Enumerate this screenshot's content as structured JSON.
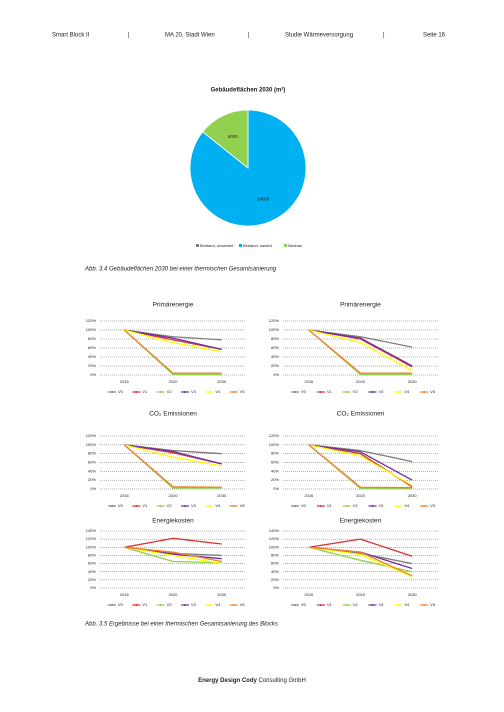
{
  "header": {
    "items": [
      "Smart Block II",
      "|",
      "MA 20, Stadt Wien",
      "|",
      "Studie Wärmeversorgung",
      "|",
      "Seite 16"
    ]
  },
  "chart_data": [
    {
      "type": "pie",
      "title": "Gebäudeflächen 2030 (m²)",
      "categories": [
        "Bestand, unsaniert",
        "Bestand, saniert",
        "Neubau"
      ],
      "values": [
        0,
        24000,
        4000
      ],
      "colors": [
        "#7f7f7f",
        "#00b0f0",
        "#92d050"
      ],
      "legend": "bottom"
    },
    {
      "type": "line",
      "title": "Primärenergie",
      "categories": [
        "2016",
        "2020",
        "2030"
      ],
      "ylim": [
        0,
        120
      ],
      "yticks": [
        {
          "value": 0,
          "label": "0%"
        },
        {
          "value": 20,
          "label": "20%"
        },
        {
          "value": 40,
          "label": "40%"
        },
        {
          "value": 60,
          "label": "60%"
        },
        {
          "value": 80,
          "label": "80%"
        },
        {
          "value": 100,
          "label": "100%"
        },
        {
          "value": 120,
          "label": "120%"
        }
      ],
      "grid": true,
      "series": [
        {
          "name": "V0",
          "color": "#7f7f7f",
          "values": [
            100,
            85,
            78
          ]
        },
        {
          "name": "V1",
          "color": "#e03030",
          "values": [
            100,
            78,
            57
          ]
        },
        {
          "name": "V2",
          "color": "#92d050",
          "values": [
            100,
            1,
            1
          ]
        },
        {
          "name": "V3",
          "color": "#7030a0",
          "values": [
            100,
            82,
            57
          ]
        },
        {
          "name": "V4",
          "color": "#ffff00",
          "values": [
            100,
            72,
            52
          ]
        },
        {
          "name": "V5",
          "color": "#f08030",
          "values": [
            100,
            4,
            4
          ]
        }
      ]
    },
    {
      "type": "line",
      "title": "Primärenergie",
      "categories": [
        "2016",
        "2020",
        "2030"
      ],
      "ylim": [
        0,
        120
      ],
      "yticks": [
        {
          "value": 0,
          "label": "0%"
        },
        {
          "value": 20,
          "label": "20%"
        },
        {
          "value": 40,
          "label": "40%"
        },
        {
          "value": 60,
          "label": "60%"
        },
        {
          "value": 80,
          "label": "80%"
        },
        {
          "value": 100,
          "label": "100%"
        },
        {
          "value": 120,
          "label": "120%"
        }
      ],
      "grid": true,
      "series": [
        {
          "name": "V0",
          "color": "#7f7f7f",
          "values": [
            100,
            85,
            62
          ]
        },
        {
          "name": "V1",
          "color": "#e03030",
          "values": [
            100,
            80,
            18
          ]
        },
        {
          "name": "V2",
          "color": "#92d050",
          "values": [
            100,
            1,
            1
          ]
        },
        {
          "name": "V3",
          "color": "#7030a0",
          "values": [
            100,
            82,
            20
          ]
        },
        {
          "name": "V4",
          "color": "#ffff00",
          "values": [
            100,
            72,
            10
          ]
        },
        {
          "name": "V5",
          "color": "#f08030",
          "values": [
            100,
            4,
            4
          ]
        }
      ]
    },
    {
      "type": "line",
      "title": "CO₂ Emissionen",
      "categories": [
        "2016",
        "2020",
        "2030"
      ],
      "ylim": [
        0,
        120
      ],
      "yticks": [
        {
          "value": 0,
          "label": "0%"
        },
        {
          "value": 20,
          "label": "20%"
        },
        {
          "value": 40,
          "label": "40%"
        },
        {
          "value": 60,
          "label": "60%"
        },
        {
          "value": 80,
          "label": "80%"
        },
        {
          "value": 100,
          "label": "100%"
        },
        {
          "value": 120,
          "label": "120%"
        }
      ],
      "grid": true,
      "series": [
        {
          "name": "V0",
          "color": "#7f7f7f",
          "values": [
            100,
            87,
            80
          ]
        },
        {
          "name": "V1",
          "color": "#e03030",
          "values": [
            100,
            82,
            57
          ]
        },
        {
          "name": "V2",
          "color": "#92d050",
          "values": [
            100,
            2,
            2
          ]
        },
        {
          "name": "V3",
          "color": "#7030a0",
          "values": [
            100,
            85,
            57
          ]
        },
        {
          "name": "V4",
          "color": "#ffff00",
          "values": [
            100,
            72,
            52
          ]
        },
        {
          "name": "V5",
          "color": "#f08030",
          "values": [
            100,
            5,
            4
          ]
        }
      ]
    },
    {
      "type": "line",
      "title": "CO₂ Emissionen",
      "categories": [
        "2016",
        "2020",
        "2030"
      ],
      "ylim": [
        0,
        120
      ],
      "yticks": [
        {
          "value": 0,
          "label": "0%"
        },
        {
          "value": 20,
          "label": "20%"
        },
        {
          "value": 40,
          "label": "40%"
        },
        {
          "value": 60,
          "label": "60%"
        },
        {
          "value": 80,
          "label": "80%"
        },
        {
          "value": 100,
          "label": "100%"
        },
        {
          "value": 120,
          "label": "120%"
        }
      ],
      "grid": true,
      "series": [
        {
          "name": "V0",
          "color": "#7f7f7f",
          "values": [
            100,
            87,
            62
          ]
        },
        {
          "name": "V1",
          "color": "#e03030",
          "values": [
            100,
            80,
            5
          ]
        },
        {
          "name": "V2",
          "color": "#92d050",
          "values": [
            100,
            1,
            1
          ]
        },
        {
          "name": "V3",
          "color": "#7030a0",
          "values": [
            100,
            84,
            20
          ]
        },
        {
          "name": "V4",
          "color": "#ffff00",
          "values": [
            100,
            75,
            8
          ]
        },
        {
          "name": "V5",
          "color": "#f08030",
          "values": [
            100,
            4,
            3
          ]
        }
      ]
    },
    {
      "type": "line",
      "title": "Energiekosten",
      "categories": [
        "2016",
        "2020",
        "2030"
      ],
      "ylim": [
        0,
        140
      ],
      "yticks": [
        {
          "value": 0,
          "label": "0%"
        },
        {
          "value": 20,
          "label": "20%"
        },
        {
          "value": 40,
          "label": "40%"
        },
        {
          "value": 60,
          "label": "60%"
        },
        {
          "value": 80,
          "label": "80%"
        },
        {
          "value": 100,
          "label": "100%"
        },
        {
          "value": 120,
          "label": "120%"
        },
        {
          "value": 140,
          "label": "140%"
        }
      ],
      "grid": true,
      "series": [
        {
          "name": "V0",
          "color": "#7f7f7f",
          "values": [
            100,
            85,
            80
          ]
        },
        {
          "name": "V1",
          "color": "#e03030",
          "values": [
            100,
            122,
            108
          ]
        },
        {
          "name": "V2",
          "color": "#92d050",
          "values": [
            100,
            65,
            62
          ]
        },
        {
          "name": "V3",
          "color": "#7030a0",
          "values": [
            100,
            83,
            72
          ]
        },
        {
          "name": "V4",
          "color": "#ffff00",
          "values": [
            100,
            80,
            60
          ]
        },
        {
          "name": "V5",
          "color": "#f08030",
          "values": [
            100,
            88,
            65
          ]
        }
      ]
    },
    {
      "type": "line",
      "title": "Energiekosten",
      "categories": [
        "2016",
        "2020",
        "2030"
      ],
      "ylim": [
        0,
        140
      ],
      "yticks": [
        {
          "value": 0,
          "label": "0%"
        },
        {
          "value": 20,
          "label": "20%"
        },
        {
          "value": 40,
          "label": "40%"
        },
        {
          "value": 60,
          "label": "60%"
        },
        {
          "value": 80,
          "label": "80%"
        },
        {
          "value": 100,
          "label": "100%"
        },
        {
          "value": 120,
          "label": "120%"
        },
        {
          "value": 140,
          "label": "140%"
        }
      ],
      "grid": true,
      "series": [
        {
          "name": "V0",
          "color": "#7f7f7f",
          "values": [
            100,
            85,
            60
          ]
        },
        {
          "name": "V1",
          "color": "#e03030",
          "values": [
            100,
            120,
            78
          ]
        },
        {
          "name": "V2",
          "color": "#92d050",
          "values": [
            100,
            68,
            40
          ]
        },
        {
          "name": "V3",
          "color": "#7030a0",
          "values": [
            100,
            88,
            48
          ]
        },
        {
          "name": "V4",
          "color": "#ffff00",
          "values": [
            100,
            82,
            28
          ]
        },
        {
          "name": "V5",
          "color": "#f08030",
          "values": [
            100,
            88,
            30
          ]
        }
      ]
    }
  ],
  "captions": [
    "Abb. 3.4 Gebäudeflächen 2030 bei einer thermischen Gesamtsanierung",
    "Abb. 3.5 Ergebnisse bei einer thermischen Gesamtsanierung des Blocks"
  ],
  "footer": {
    "bold": "Energy Design Cody",
    "text": " Consulting GmbH"
  }
}
